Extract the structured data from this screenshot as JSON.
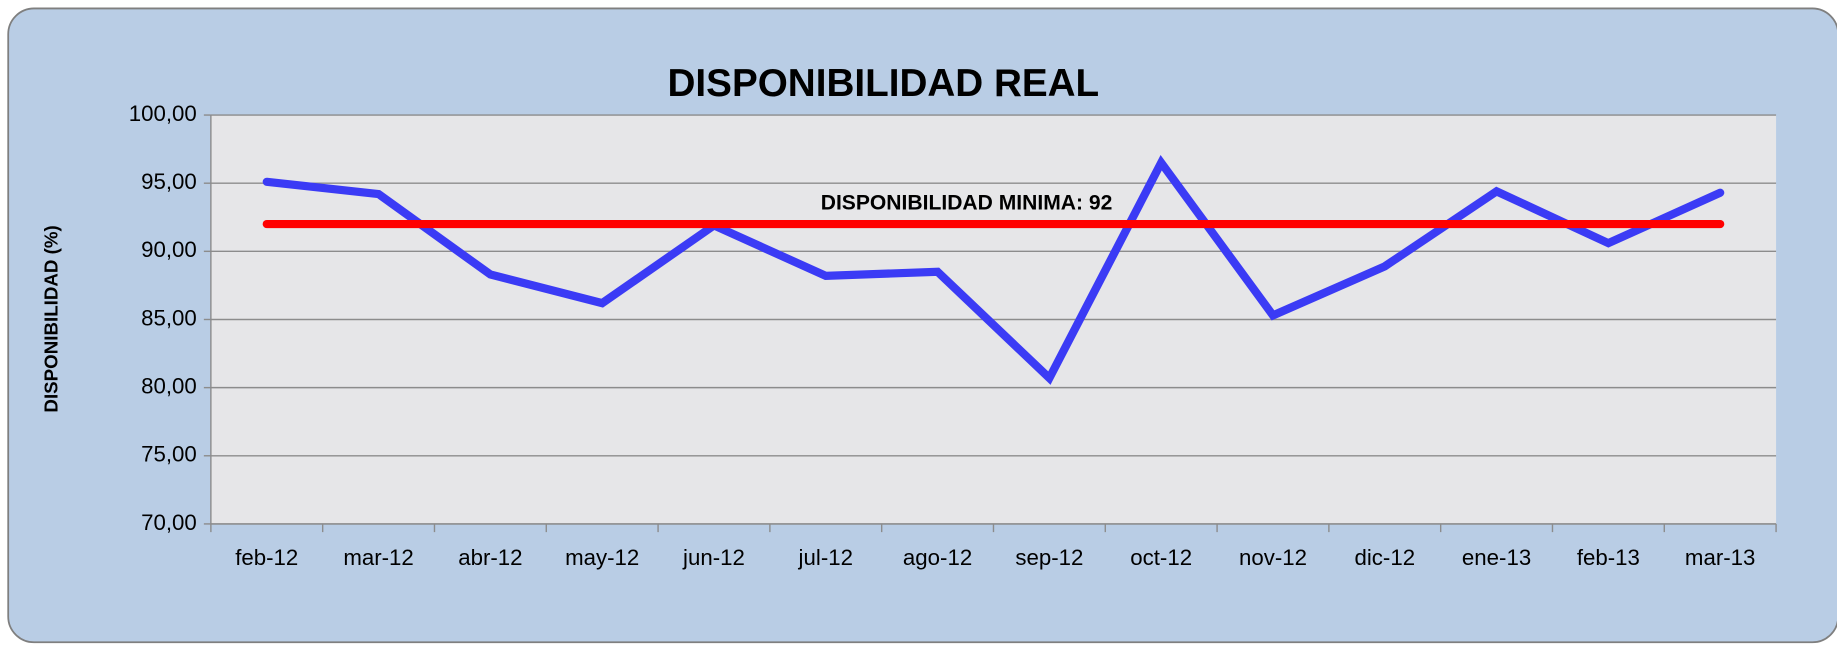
{
  "chart_data": {
    "type": "line",
    "title": "DISPONIBILIDAD REAL",
    "y_label": "DISPONIBILIDAD (%)",
    "annotation": "DISPONIBILIDAD MINIMA: 92",
    "categories": [
      "feb-12",
      "mar-12",
      "abr-12",
      "may-12",
      "jun-12",
      "jul-12",
      "ago-12",
      "sep-12",
      "oct-12",
      "nov-12",
      "dic-12",
      "ene-13",
      "feb-13",
      "mar-13"
    ],
    "series": [
      {
        "color": "#3b3bf5",
        "values": [
          95.1,
          94.2,
          88.3,
          86.2,
          91.9,
          88.2,
          88.5,
          80.7,
          96.5,
          85.3,
          88.9,
          94.4,
          90.6,
          94.3
        ]
      },
      {
        "color": "#ff0000",
        "values": [
          92,
          92,
          92,
          92,
          92,
          92,
          92,
          92,
          92,
          92,
          92,
          92,
          92,
          92
        ]
      }
    ],
    "ylim": [
      70,
      100
    ],
    "yticks": [
      {
        "value": 70,
        "label": "70,00"
      },
      {
        "value": 75,
        "label": "75,00"
      },
      {
        "value": 80,
        "label": "80,00"
      },
      {
        "value": 85,
        "label": "85,00"
      },
      {
        "value": 90,
        "label": "90,00"
      },
      {
        "value": 95,
        "label": "95,00"
      },
      {
        "value": 100,
        "label": "100,00"
      }
    ],
    "grid": true
  }
}
